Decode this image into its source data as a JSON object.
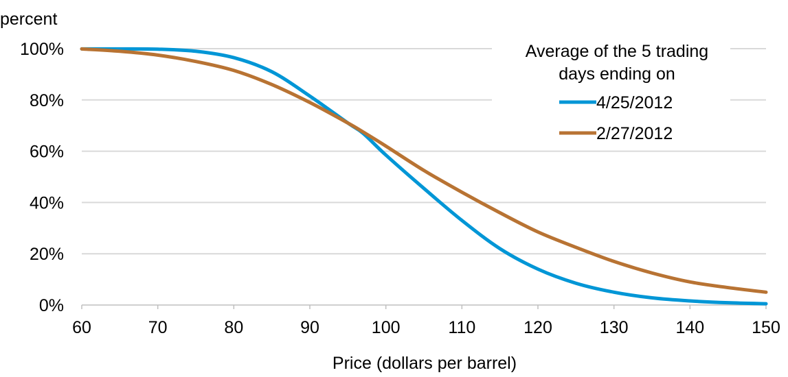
{
  "chart_data": {
    "type": "line",
    "ylabel": "percent",
    "xlabel": "Price (dollars per barrel)",
    "xlim": [
      60,
      150
    ],
    "ylim": [
      0,
      100
    ],
    "x_ticks": [
      60,
      70,
      80,
      90,
      100,
      110,
      120,
      130,
      140,
      150
    ],
    "x_tick_labels": [
      "60",
      "70",
      "80",
      "90",
      "100",
      "110",
      "120",
      "130",
      "140",
      "150"
    ],
    "y_ticks": [
      0,
      20,
      40,
      60,
      80,
      100
    ],
    "y_tick_labels": [
      "0%",
      "20%",
      "40%",
      "60%",
      "80%",
      "100%"
    ],
    "grid": "horizontal",
    "legend": {
      "title_lines": [
        "Average of the 5 trading",
        "days ending on"
      ],
      "placement": "top-right"
    },
    "x": [
      60,
      65,
      70,
      75,
      80,
      85,
      90,
      95,
      97,
      100,
      105,
      110,
      115,
      120,
      125,
      130,
      135,
      140,
      145,
      150
    ],
    "series": [
      {
        "name": "4/25/2012",
        "color": "#0096d6",
        "values": [
          99.9,
          99.9,
          99.8,
          99.0,
          96.5,
          91.0,
          81.5,
          71.0,
          67.0,
          58.5,
          45.5,
          33.0,
          22.0,
          14.0,
          8.5,
          5.0,
          2.8,
          1.6,
          0.9,
          0.5
        ]
      },
      {
        "name": "2/27/2012",
        "color": "#b87333",
        "values": [
          99.9,
          99.0,
          97.5,
          95.0,
          91.5,
          86.0,
          79.0,
          71.0,
          67.5,
          62.0,
          52.5,
          44.0,
          36.0,
          28.5,
          22.5,
          17.0,
          12.5,
          9.0,
          6.8,
          5.0
        ]
      }
    ]
  }
}
